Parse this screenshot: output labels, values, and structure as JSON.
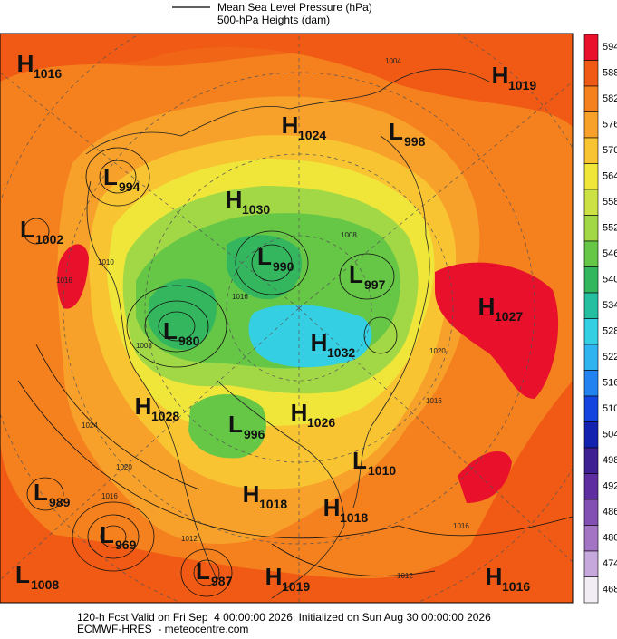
{
  "header": {
    "legend_line_label": "Mean Sea Level Pressure (hPa)",
    "fill_label": "500-hPa Heights (dam)"
  },
  "colorbar": {
    "ticks": [
      594,
      588,
      582,
      576,
      570,
      564,
      558,
      552,
      546,
      540,
      534,
      528,
      522,
      516,
      510,
      504,
      498,
      492,
      486,
      480,
      474,
      468
    ],
    "colors": [
      "#e8102a",
      "#f05a14",
      "#f5801e",
      "#f7a02a",
      "#f8c432",
      "#f0e63a",
      "#cce244",
      "#a2d846",
      "#66c646",
      "#34b65e",
      "#24bea0",
      "#34cfe2",
      "#30b4f0",
      "#2282f0",
      "#1444e0",
      "#1422b0",
      "#3e2092",
      "#5e2ea0",
      "#8250b2",
      "#a474c4",
      "#c6a8dc",
      "#f2ecf4"
    ]
  },
  "systems": [
    {
      "letter": "H",
      "value": 1016
    },
    {
      "letter": "H",
      "value": 1019
    },
    {
      "letter": "H",
      "value": 1024
    },
    {
      "letter": "L",
      "value": 998
    },
    {
      "letter": "L",
      "value": 994
    },
    {
      "letter": "H",
      "value": 1030
    },
    {
      "letter": "L",
      "value": 1002
    },
    {
      "letter": "L",
      "value": 990
    },
    {
      "letter": "L",
      "value": 997
    },
    {
      "letter": "H",
      "value": 1027
    },
    {
      "letter": "L",
      "value": 980
    },
    {
      "letter": "H",
      "value": 1032
    },
    {
      "letter": "H",
      "value": 1028
    },
    {
      "letter": "H",
      "value": 1026
    },
    {
      "letter": "L",
      "value": 996
    },
    {
      "letter": "L",
      "value": 1010
    },
    {
      "letter": "L",
      "value": 989
    },
    {
      "letter": "H",
      "value": 1018
    },
    {
      "letter": "H",
      "value": 1018
    },
    {
      "letter": "L",
      "value": 969
    },
    {
      "letter": "L",
      "value": 1008
    },
    {
      "letter": "L",
      "value": 987
    },
    {
      "letter": "H",
      "value": 1019
    },
    {
      "letter": "H",
      "value": 1016
    }
  ],
  "contour_labels": [
    1004,
    1008,
    1016,
    1016,
    1010,
    1008,
    1020,
    1016,
    1024,
    1020,
    1016,
    1012,
    1016,
    1012
  ],
  "footer": {
    "line1": "120-h Fcst Valid on Fri Sep  4 00:00:00 2026, Initialized on Sun Aug 30 00:00:00 2026",
    "line2": "ECMWF-HRES  - meteocentre.com"
  }
}
